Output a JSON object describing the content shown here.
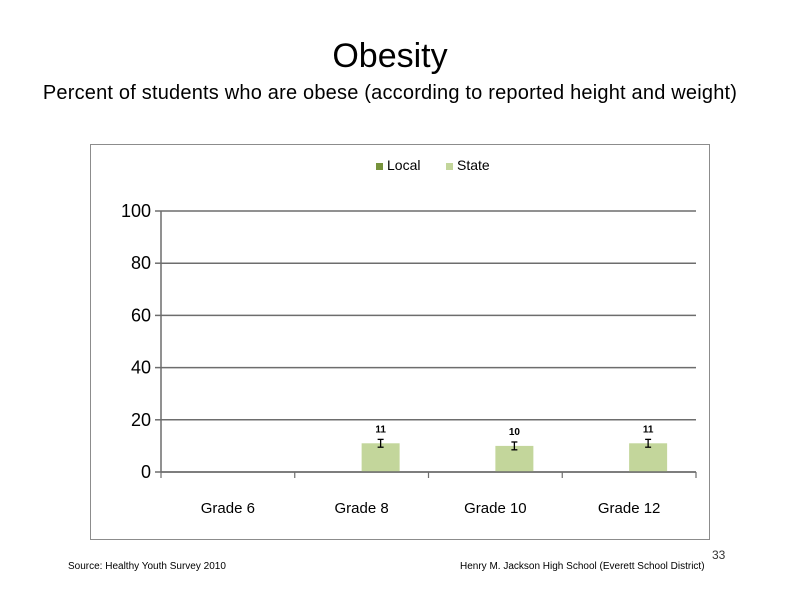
{
  "slide": {
    "title": "Obesity",
    "subtitle": "Percent of students who are obese (according to reported height and weight)",
    "footer_source": "Source: Healthy Youth Survey 2010",
    "footer_school": "Henry M. Jackson High School (Everett School District)",
    "page_number": "33"
  },
  "chart_data": {
    "type": "bar",
    "title": "",
    "xlabel": "",
    "ylabel": "",
    "ylim": [
      0,
      100
    ],
    "y_ticks": [
      0,
      20,
      40,
      60,
      80,
      100
    ],
    "categories": [
      "Grade 6",
      "Grade 8",
      "Grade 10",
      "Grade 12"
    ],
    "series": [
      {
        "name": "Local",
        "color": "#77933c",
        "values": [
          null,
          null,
          null,
          null
        ]
      },
      {
        "name": "State",
        "color": "#c3d69b",
        "values": [
          null,
          11,
          10,
          11
        ],
        "data_labels": [
          "",
          "11",
          "10",
          "11"
        ],
        "error": [
          null,
          1.5,
          1.5,
          1.5
        ]
      }
    ],
    "legend": "top-center",
    "grid": true
  }
}
